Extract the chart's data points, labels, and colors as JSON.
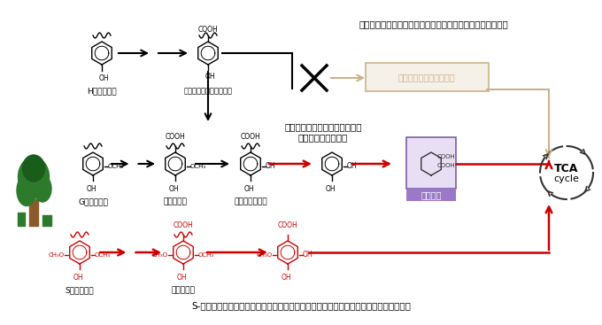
{
  "title": "",
  "bg_color": "#ffffff",
  "top_text": "本来機能する代謝経路を、遺伝子組換えにより機能させない",
  "middle_text_line1": "遺伝子組換えによりムコン酸を",
  "middle_text_line2": "合成する経路を導入",
  "bottom_text": "S-リグニンの代謝経路を活用して、増殖のための炭素源・エネルギー源を獲得させる。",
  "blocked_pathway_label": "プロトカテク酸代謝経路",
  "muconic_acid_label": "ムコン酸",
  "tca_label_line1": "TCA",
  "tca_label_line2": "cycle",
  "h_lignin_label": "H－リグニン",
  "g_lignin_label": "G－リグニン",
  "s_lignin_label": "S－リグニン",
  "label_4hba": "４－ヒドロキシ安息香酸",
  "label_vanillin": "バニリン酸",
  "label_protocatechuic": "プロトカテク酸",
  "label_syringic": "シリンガ酸",
  "black_color": "#000000",
  "red_color": "#cc0000",
  "tan_color": "#c8b48a",
  "purple_color": "#7b5ea7",
  "purple_bg": "#9b79c8",
  "dashed_circle_color": "#333333",
  "tree_green": "#2d7a2d",
  "tree_trunk": "#8b5a2b"
}
